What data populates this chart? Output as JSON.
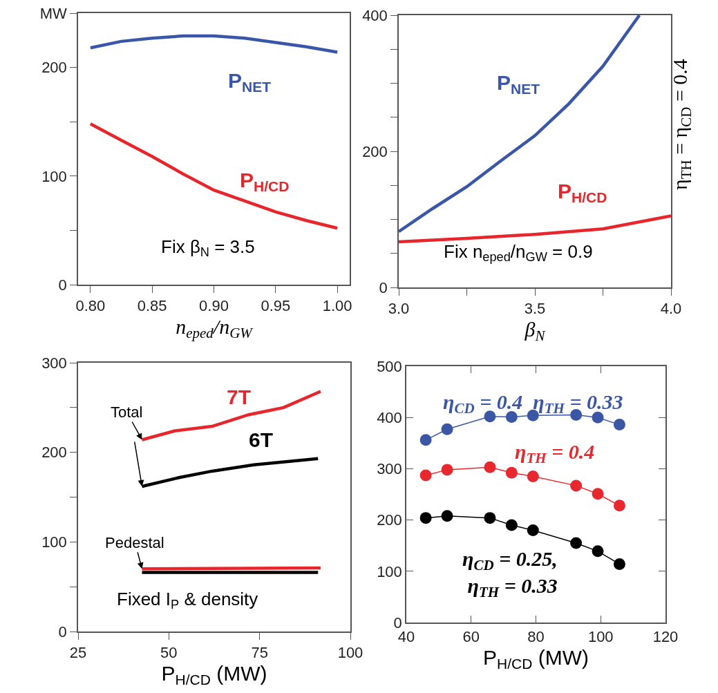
{
  "chart_data": [
    {
      "type": "line",
      "xlabel": "n$_{eped}$/n$_{GW}$",
      "xlim": [
        0.79,
        1.01
      ],
      "ylim": [
        0,
        250
      ],
      "xticks": [
        {
          "value": 0.8,
          "label": "0.80"
        },
        0.85,
        {
          "value": 0.9,
          "label": "0.90"
        },
        0.95,
        {
          "value": 1.0,
          "label": "1.00"
        }
      ],
      "yticks": [
        0,
        {
          "value": 50,
          "label": null
        },
        100,
        {
          "value": 150,
          "label": null
        },
        200,
        {
          "value": 250,
          "label": "MW"
        }
      ],
      "series": [
        {
          "name": "P$_{NET}$",
          "color": "#3a56a8",
          "x": [
            0.8,
            0.825,
            0.85,
            0.875,
            0.9,
            0.925,
            0.95,
            0.975,
            1.0
          ],
          "values": [
            218,
            224,
            227,
            229,
            229,
            227,
            223,
            219,
            214
          ]
        },
        {
          "name": "P$_{H/CD}$",
          "color": "#e8252b",
          "x": [
            0.8,
            0.825,
            0.85,
            0.875,
            0.9,
            0.925,
            0.95,
            0.975,
            1.0
          ],
          "values": [
            148,
            133,
            118,
            102,
            87,
            77,
            67,
            59,
            52
          ]
        }
      ],
      "annotations": [
        "Fix β$_{N}$ = 3.5"
      ]
    },
    {
      "type": "line",
      "xlabel": "β$_{N}$",
      "xlim": [
        3.0,
        4.0
      ],
      "ylim": [
        0,
        400
      ],
      "xticks": [
        {
          "value": 3.0,
          "label": "3.0"
        },
        {
          "value": 3.25,
          "label": null
        },
        3.5,
        {
          "value": 3.75,
          "label": null
        },
        {
          "value": 4.0,
          "label": "4.0"
        }
      ],
      "yticks": [
        0,
        {
          "value": 50,
          "label": null
        },
        {
          "value": 100,
          "label": null
        },
        {
          "value": 150,
          "label": null
        },
        200,
        {
          "value": 250,
          "label": null
        },
        {
          "value": 300,
          "label": null
        },
        {
          "value": 350,
          "label": null
        },
        400
      ],
      "series": [
        {
          "name": "P$_{NET}$",
          "color": "#3a56a8",
          "x": [
            3.0,
            3.125,
            3.25,
            3.375,
            3.5,
            3.625,
            3.75,
            3.884
          ],
          "values": [
            82,
            116,
            148,
            186,
            223,
            270,
            325,
            400
          ]
        },
        {
          "name": "P$_{H/CD}$",
          "color": "#e8252b",
          "x": [
            3.0,
            3.25,
            3.5,
            3.75,
            4.0
          ],
          "values": [
            67,
            72,
            78,
            86,
            105
          ]
        }
      ],
      "annotations": [
        "Fix n$_{eped}$/n$_{GW}$ = 0.9",
        "η$_{TH}$ = η$_{CD}$ = 0.4"
      ]
    },
    {
      "type": "line",
      "xlabel": "P$_{H/CD}$ (MW)",
      "xlim": [
        25,
        100
      ],
      "ylim": [
        0,
        300
      ],
      "xticks": [
        25,
        50,
        75,
        100
      ],
      "yticks": [
        0,
        {
          "value": 50,
          "label": null
        },
        100,
        {
          "value": 150,
          "label": null
        },
        200,
        {
          "value": 250,
          "label": null
        },
        300
      ],
      "series": [
        {
          "name": "7T",
          "color": "#e8252b",
          "x": [
            42.6,
            51.7,
            61.9,
            72.0,
            81.6,
            91.8
          ],
          "values": [
            214,
            224,
            229,
            242,
            250,
            268
          ]
        },
        {
          "name": "6T",
          "color": "#000000",
          "x": [
            42.6,
            53.0,
            61.9,
            73.4,
            91.1
          ],
          "values": [
            162,
            172,
            179,
            186,
            193
          ]
        },
        {
          "color": "#e8252b",
          "x": [
            42.6,
            91.8
          ],
          "values": [
            70,
            71
          ]
        },
        {
          "color": "#000000",
          "x": [
            42.6,
            91.1
          ],
          "values": [
            66,
            66
          ]
        }
      ],
      "annotations": [
        {
          "text": "Total",
          "x": 42.6,
          "y": 214
        },
        {
          "text": "Pedestal",
          "x": 42.6,
          "y": 70
        },
        "Fixed I$_{P}$ & density"
      ]
    },
    {
      "type": "line",
      "marker": "circle",
      "line_style": "solid",
      "xlabel": "P$_{H/CD}$ (MW)",
      "xlim": [
        40,
        120
      ],
      "ylim": [
        0,
        500
      ],
      "xticks": [
        40,
        60,
        80,
        100,
        120
      ],
      "yticks": [
        0,
        100,
        200,
        300,
        400,
        500
      ],
      "series": [
        {
          "name": "η$_{CD}$ = 0.4  η$_{TH}$ = 0.33",
          "color": "#3b56a5",
          "x": [
            46,
            52.6,
            65.8,
            72.5,
            79.1,
            92.4,
            99.1,
            105.8
          ],
          "values": [
            356,
            377,
            402,
            401,
            404,
            405,
            400,
            386
          ]
        },
        {
          "name": "η$_{TH}$ = 0.4",
          "color": "#e8282e",
          "x": [
            46,
            52.6,
            65.8,
            72.5,
            79.1,
            92.4,
            99.1,
            105.8
          ],
          "values": [
            287,
            298,
            303,
            292,
            285,
            267,
            251,
            228
          ]
        },
        {
          "name": "η$_{CD}$ = 0.25,\nη$_{TH}$ = 0.33",
          "color": "#000000",
          "x": [
            46,
            52.6,
            65.8,
            72.5,
            79.1,
            92.4,
            99.1,
            105.8
          ],
          "values": [
            204,
            208,
            204,
            190,
            180,
            155,
            139,
            114
          ]
        }
      ]
    }
  ]
}
